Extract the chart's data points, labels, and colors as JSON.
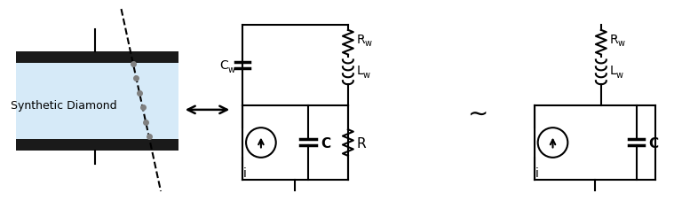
{
  "bg_color": "#ffffff",
  "diamond_fill": "#d6eaf8",
  "electrode_color": "#1a1a1a",
  "line_color": "#000000",
  "text_color": "#000000",
  "label_synth": "Synthetic Diamond",
  "label_cw": "C",
  "label_cw_sub": "w",
  "label_lw": "L",
  "label_lw_sub": "w",
  "label_rw": "R",
  "label_rw_sub": "w",
  "label_c": "C",
  "label_r": "R",
  "label_i": "i",
  "figsize": [
    7.68,
    2.28
  ],
  "dpi": 100
}
